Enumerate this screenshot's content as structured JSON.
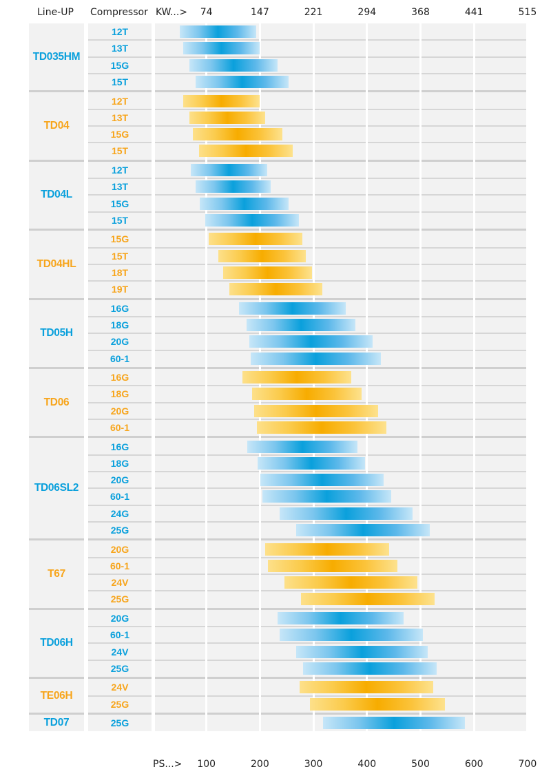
{
  "colors": {
    "blue": "#0aa0dc",
    "orange": "#f7a51c"
  },
  "headers": {
    "lineup": "Line-UP",
    "compressor": "Compressor",
    "kw_prefix": "KW...>",
    "ps_prefix": "PS...>"
  },
  "chart_data": {
    "type": "bar",
    "subtype": "horizontal-range",
    "title": "",
    "xlabel": "PS",
    "x2label": "KW",
    "xlim": [
      0,
      700
    ],
    "ps_ticks": [
      "100",
      "200",
      "300",
      "400",
      "500",
      "600",
      "700"
    ],
    "kw_ticks": [
      "74",
      "147",
      "221",
      "294",
      "368",
      "441",
      "515"
    ],
    "grid": true,
    "groups": [
      {
        "name": "TD035HM",
        "color": "blue",
        "rows": [
          {
            "compressor": "12T",
            "min": 50,
            "max": 193
          },
          {
            "compressor": "13T",
            "min": 57,
            "max": 200
          },
          {
            "compressor": "15G",
            "min": 68,
            "max": 233
          },
          {
            "compressor": "15T",
            "min": 80,
            "max": 254
          }
        ]
      },
      {
        "name": "TD04",
        "color": "orange",
        "rows": [
          {
            "compressor": "12T",
            "min": 57,
            "max": 200
          },
          {
            "compressor": "13T",
            "min": 68,
            "max": 210
          },
          {
            "compressor": "15G",
            "min": 75,
            "max": 242
          },
          {
            "compressor": "15T",
            "min": 86,
            "max": 261
          }
        ]
      },
      {
        "name": "TD04L",
        "color": "blue",
        "rows": [
          {
            "compressor": "12T",
            "min": 71,
            "max": 214
          },
          {
            "compressor": "13T",
            "min": 80,
            "max": 220
          },
          {
            "compressor": "15G",
            "min": 88,
            "max": 254
          },
          {
            "compressor": "15T",
            "min": 98,
            "max": 273
          }
        ]
      },
      {
        "name": "TD04HL",
        "color": "orange",
        "rows": [
          {
            "compressor": "15G",
            "min": 104,
            "max": 279
          },
          {
            "compressor": "15T",
            "min": 122,
            "max": 286
          },
          {
            "compressor": "18T",
            "min": 131,
            "max": 297
          },
          {
            "compressor": "19T",
            "min": 143,
            "max": 317
          }
        ]
      },
      {
        "name": "TD05H",
        "color": "blue",
        "rows": [
          {
            "compressor": "16G",
            "min": 161,
            "max": 360
          },
          {
            "compressor": "18G",
            "min": 175,
            "max": 378
          },
          {
            "compressor": "20G",
            "min": 180,
            "max": 411
          },
          {
            "compressor": "60-1",
            "min": 183,
            "max": 426
          }
        ]
      },
      {
        "name": "TD06",
        "color": "orange",
        "rows": [
          {
            "compressor": "16G",
            "min": 167,
            "max": 371
          },
          {
            "compressor": "18G",
            "min": 185,
            "max": 390
          },
          {
            "compressor": "20G",
            "min": 189,
            "max": 421
          },
          {
            "compressor": "60-1",
            "min": 194,
            "max": 436
          }
        ]
      },
      {
        "name": "TD06SL2",
        "color": "blue",
        "rows": [
          {
            "compressor": "16G",
            "min": 176,
            "max": 382
          },
          {
            "compressor": "18G",
            "min": 196,
            "max": 396
          },
          {
            "compressor": "20G",
            "min": 201,
            "max": 431
          },
          {
            "compressor": "60-1",
            "min": 205,
            "max": 445
          },
          {
            "compressor": "24G",
            "min": 237,
            "max": 485
          },
          {
            "compressor": "25G",
            "min": 268,
            "max": 517
          }
        ]
      },
      {
        "name": "T67",
        "color": "orange",
        "rows": [
          {
            "compressor": "20G",
            "min": 210,
            "max": 441
          },
          {
            "compressor": "60-1",
            "min": 215,
            "max": 457
          },
          {
            "compressor": "24V",
            "min": 246,
            "max": 494
          },
          {
            "compressor": "25G",
            "min": 277,
            "max": 526
          }
        ]
      },
      {
        "name": "TD06H",
        "color": "blue",
        "rows": [
          {
            "compressor": "20G",
            "min": 233,
            "max": 468
          },
          {
            "compressor": "60-1",
            "min": 237,
            "max": 505
          },
          {
            "compressor": "24V",
            "min": 268,
            "max": 514
          },
          {
            "compressor": "25G",
            "min": 281,
            "max": 530
          }
        ]
      },
      {
        "name": "TE06H",
        "color": "orange",
        "rows": [
          {
            "compressor": "24V",
            "min": 274,
            "max": 524
          },
          {
            "compressor": "25G",
            "min": 293,
            "max": 546
          }
        ]
      },
      {
        "name": "TD07",
        "color": "blue",
        "rows": [
          {
            "compressor": "25G",
            "min": 318,
            "max": 583
          }
        ]
      }
    ]
  }
}
